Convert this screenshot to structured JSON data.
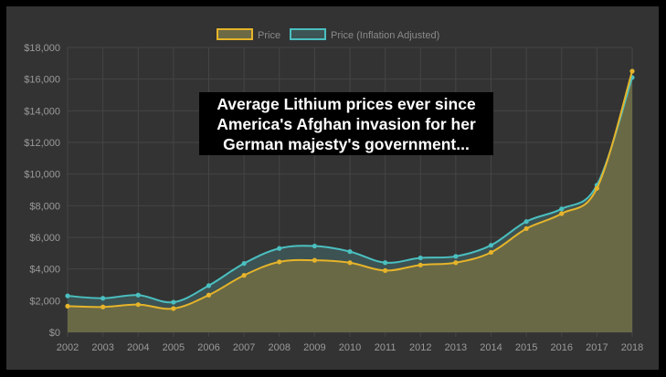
{
  "chart_data": {
    "type": "line",
    "title": "",
    "annotation": [
      "Average Lithium prices ever since",
      "America's Afghan invasion for her",
      "German majesty's government..."
    ],
    "x": [
      "2002",
      "2003",
      "2004",
      "2005",
      "2006",
      "2007",
      "2008",
      "2009",
      "2010",
      "2011",
      "2012",
      "2013",
      "2014",
      "2015",
      "2016",
      "2017",
      "2018"
    ],
    "ylim": [
      0,
      18000
    ],
    "yticks": [
      0,
      2000,
      4000,
      6000,
      8000,
      10000,
      12000,
      14000,
      16000,
      18000
    ],
    "ytick_labels": [
      "$0",
      "$2,000",
      "$4,000",
      "$6,000",
      "$8,000",
      "$10,000",
      "$12,000",
      "$14,000",
      "$16,000",
      "$18,000"
    ],
    "grid": true,
    "legend_position": "top",
    "series": [
      {
        "name": "Price",
        "color": "#e6b42a",
        "fill": "#6b6a45",
        "values": [
          1650,
          1600,
          1750,
          1500,
          2350,
          3600,
          4450,
          4550,
          4400,
          3900,
          4250,
          4400,
          5050,
          6550,
          7500,
          9100,
          16500
        ]
      },
      {
        "name": "Price (Inflation Adjusted)",
        "color": "#4bbfc0",
        "fill": "#3e5454",
        "values": [
          2300,
          2150,
          2350,
          1900,
          2950,
          4350,
          5300,
          5450,
          5100,
          4400,
          4700,
          4800,
          5500,
          7000,
          7800,
          9300,
          16100
        ]
      }
    ]
  }
}
